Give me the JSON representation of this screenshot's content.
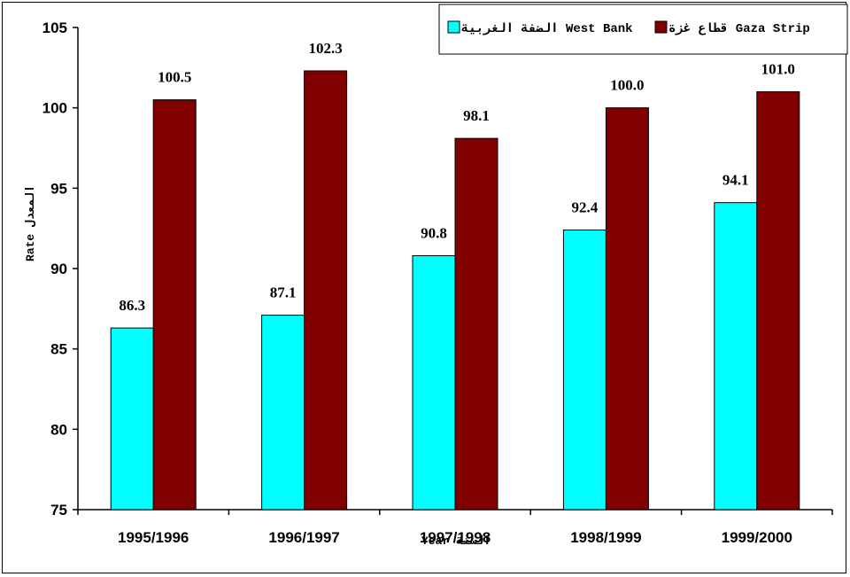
{
  "chart_data": {
    "type": "bar",
    "categories": [
      "1995/1996",
      "1996/1997",
      "1997/1998",
      "1998/1999",
      "1999/2000"
    ],
    "series": [
      {
        "name": "الضفة الغربية West Bank",
        "color": "#00FFFF",
        "values": [
          86.3,
          87.1,
          90.8,
          92.4,
          94.1
        ]
      },
      {
        "name": "قطاع غزة Gaza Strip",
        "color": "#800000",
        "values": [
          100.5,
          102.3,
          98.1,
          100.0,
          101.0
        ]
      }
    ],
    "value_labels": [
      [
        "86.3",
        "87.1",
        "90.8",
        "92.4",
        "94.1"
      ],
      [
        "100.5",
        "102.3",
        "98.1",
        "100.0",
        "101.0"
      ]
    ],
    "xlabel": "Year السنة",
    "ylabel": "Rate المعدل",
    "ylim": [
      75,
      105
    ],
    "yticks": [
      "75",
      "80",
      "85",
      "90",
      "95",
      "100",
      "105"
    ],
    "legend_position": "top-right",
    "grid": false
  }
}
